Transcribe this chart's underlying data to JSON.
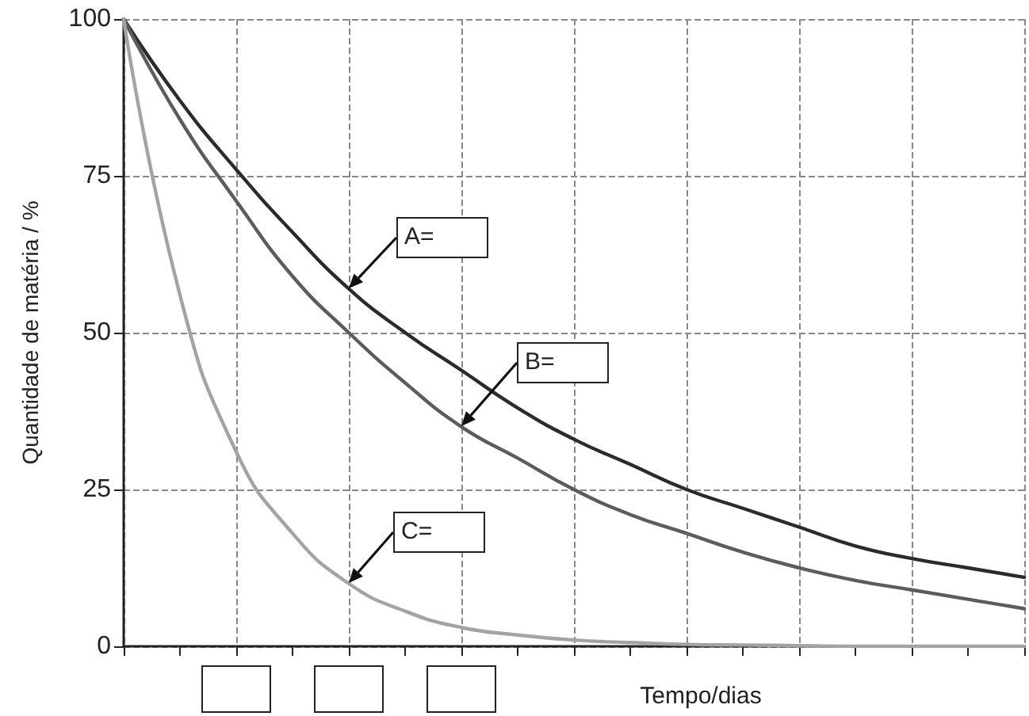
{
  "chart_data": {
    "type": "line",
    "xlabel": "Tempo/dias",
    "ylabel": "Quantidade de matéria / %",
    "categories": [
      null,
      null,
      null,
      null,
      null,
      null,
      null,
      null,
      null,
      null,
      null,
      null,
      null,
      null,
      null,
      null,
      null
    ],
    "series": [
      {
        "color": "#2b2b2b",
        "values": [
          100,
          87,
          76,
          66,
          57,
          50,
          44,
          38,
          33,
          29,
          25,
          22,
          19,
          16,
          14,
          12.5,
          11
        ]
      },
      {
        "color": "#5c5c5c",
        "values": [
          100,
          84,
          71,
          59,
          50,
          42,
          35,
          30,
          25,
          21,
          18,
          15,
          12.5,
          10.5,
          9,
          7.5,
          6
        ]
      },
      {
        "color": "#a3a3a3",
        "values": [
          100,
          56,
          31,
          18,
          10,
          5.6,
          3,
          1.8,
          1,
          0.6,
          0.3,
          0.2,
          0.1,
          0,
          0,
          0,
          0
        ]
      }
    ],
    "ylim": [
      0,
      100
    ],
    "yticks": [
      0,
      25,
      50,
      75,
      100
    ],
    "grid": true,
    "marker": "none",
    "line_style": "solid",
    "annotations": [
      "A=",
      "B=",
      "C="
    ]
  }
}
